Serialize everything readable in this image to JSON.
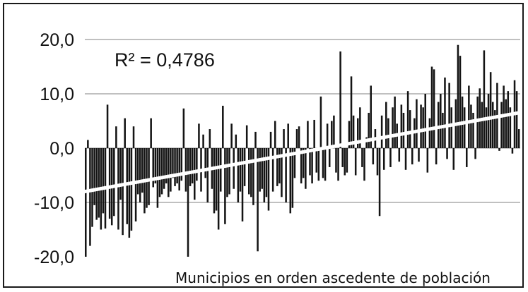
{
  "chart_data": {
    "type": "bar",
    "title": "",
    "xlabel": "Municipios en orden ascedente de población",
    "ylabel": "",
    "ylim": [
      -20,
      20
    ],
    "yticks": [
      "20,0",
      "10,0",
      "0,0",
      "-10,0",
      "-20,0"
    ],
    "annotation": "R² = 0,4786",
    "grid": true,
    "colors": {
      "bars": "#141414",
      "trendline": "#ffffff",
      "grid": "#9a9a9a"
    },
    "n_municipalities": 200,
    "trendline": {
      "start": -8.0,
      "end": 6.5
    },
    "series": [
      {
        "values": [
          -20.0,
          1.5,
          -18.0,
          -14.5,
          -10.5,
          -13.2,
          -12.8,
          -15.0,
          -12.0,
          -14.8,
          8.0,
          -13.0,
          -14.2,
          -12.5,
          4.0,
          -15.0,
          -9.5,
          -16.0,
          5.5,
          -14.0,
          -16.5,
          -15.2,
          4.0,
          -13.5,
          -8.5,
          -10.0,
          -8.2,
          -12.0,
          -11.0,
          -10.5,
          5.5,
          -7.2,
          -6.5,
          -11.0,
          -9.0,
          -8.5,
          -7.5,
          -6.5,
          -9.0,
          -8.0,
          -5.5,
          -7.0,
          -6.5,
          -7.8,
          -6.0,
          7.3,
          -8.0,
          -20.0,
          -7.0,
          -6.5,
          -9.5,
          -6.0,
          4.5,
          -8.0,
          2.5,
          -5.5,
          -10.0,
          3.5,
          -7.5,
          -12.0,
          -11.5,
          -15.0,
          -8.0,
          7.8,
          -14.0,
          -9.0,
          -8.5,
          4.5,
          -7.5,
          2.5,
          -10.0,
          -8.0,
          -13.5,
          -7.0,
          4.2,
          -8.5,
          -9.0,
          -10.5,
          3.0,
          -19.0,
          -8.0,
          -7.5,
          -10.0,
          -9.0,
          -11.5,
          3.0,
          -8.0,
          5.0,
          -7.0,
          -6.5,
          -9.0,
          3.5,
          -10.0,
          4.5,
          -12.0,
          -11.0,
          -5.5,
          3.5,
          4.0,
          -6.5,
          -5.5,
          -7.5,
          5.0,
          -5.0,
          -6.5,
          5.2,
          -4.5,
          -6.0,
          9.5,
          -5.5,
          -6.0,
          4.5,
          -3.5,
          5.0,
          6.0,
          -4.5,
          -6.0,
          17.8,
          -3.5,
          -5.0,
          -4.5,
          5.0,
          13.2,
          6.0,
          -5.0,
          5.5,
          7.5,
          -3.5,
          -6.0,
          2.0,
          6.5,
          11.5,
          -3.0,
          3.5,
          -5.0,
          -12.5,
          6.0,
          -4.0,
          8.5,
          5.5,
          -3.5,
          7.5,
          9.5,
          4.5,
          -2.5,
          8.0,
          6.5,
          -4.0,
          10.5,
          7.0,
          -3.0,
          5.5,
          9.0,
          -2.5,
          8.0,
          7.5,
          10.0,
          -4.5,
          5.5,
          15.0,
          14.5,
          -3.0,
          8.5,
          10.0,
          6.5,
          13.0,
          -2.0,
          12.0,
          7.5,
          -4.0,
          9.0,
          19.0,
          17.0,
          9.5,
          7.5,
          -3.5,
          11.5,
          8.0,
          6.5,
          -2.0,
          9.5,
          11.0,
          8.5,
          18.0,
          7.5,
          10.0,
          14.0,
          8.5,
          7.0,
          12.0,
          -0.5,
          8.5,
          11.5,
          9.0,
          10.5,
          7.5,
          -1.0,
          12.5,
          10.5,
          3.5
        ]
      }
    ]
  }
}
